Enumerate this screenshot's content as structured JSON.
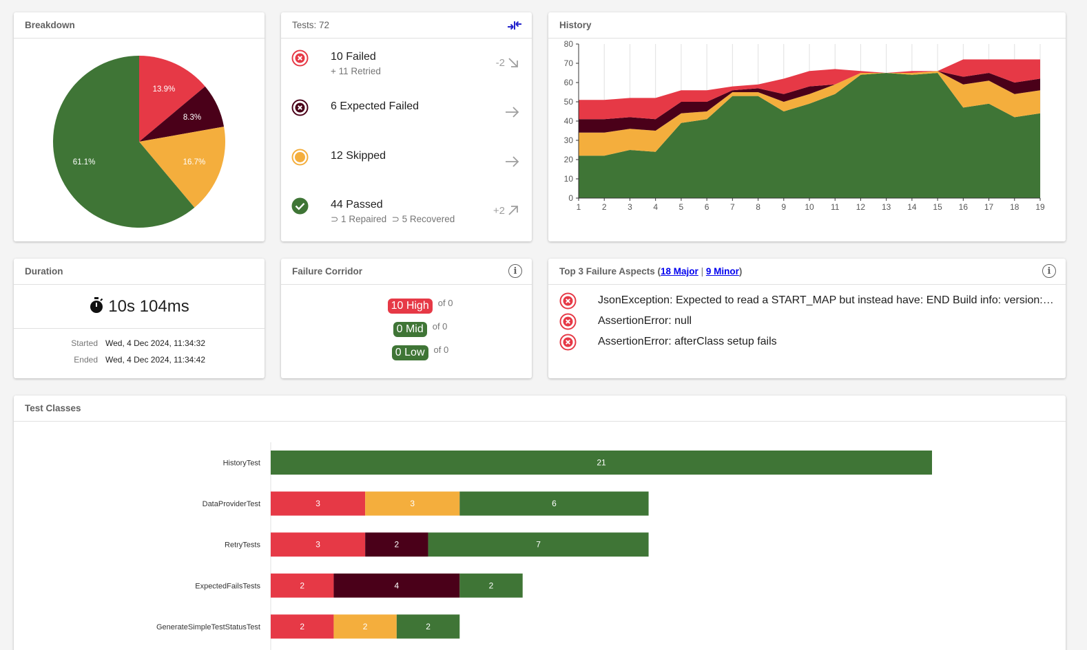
{
  "colors": {
    "failed": "#e63946",
    "expected_failed": "#4a0019",
    "skipped": "#f4ae3d",
    "passed": "#3f7536",
    "link": "#0000ee",
    "compare_icon": "#2222cc"
  },
  "breakdown": {
    "title": "Breakdown",
    "chart_data": {
      "type": "pie",
      "slices": [
        {
          "label": "Failed",
          "value": 13.9,
          "display": "13.9%",
          "color": "#e63946"
        },
        {
          "label": "Expected Failed",
          "value": 8.3,
          "display": "8.3%",
          "color": "#4a0019"
        },
        {
          "label": "Skipped",
          "value": 16.7,
          "display": "16.7%",
          "color": "#f4ae3d"
        },
        {
          "label": "Passed",
          "value": 61.1,
          "display": "61.1%",
          "color": "#3f7536"
        }
      ]
    }
  },
  "tests": {
    "title": "Tests: 72",
    "compare_icon": "compare-arrows-icon",
    "rows": [
      {
        "icon": "failed-icon",
        "main": "10 Failed",
        "sub": "+ 11 Retried",
        "delta": "-2",
        "trend_icon": "arrow-down-right-icon"
      },
      {
        "icon": "expected-failed-icon",
        "main": "6 Expected Failed",
        "sub": "",
        "delta": "",
        "trend_icon": "arrow-right-icon"
      },
      {
        "icon": "skipped-icon",
        "main": "12 Skipped",
        "sub": "",
        "delta": "",
        "trend_icon": "arrow-right-icon"
      },
      {
        "icon": "passed-icon",
        "main": "44 Passed",
        "sub": "⊃ 1 Repaired  ⊃ 5 Recovered",
        "delta": "+2",
        "trend_icon": "arrow-up-right-icon"
      }
    ]
  },
  "history": {
    "title": "History",
    "chart_data": {
      "type": "area",
      "stacked": true,
      "x": [
        1,
        2,
        3,
        4,
        5,
        6,
        7,
        8,
        9,
        10,
        11,
        12,
        13,
        14,
        15,
        16,
        17,
        18,
        19
      ],
      "ylim": [
        0,
        80
      ],
      "yticks": [
        0,
        10,
        20,
        30,
        40,
        50,
        60,
        70,
        80
      ],
      "grid": "vertical",
      "series": [
        {
          "name": "Passed",
          "color": "#3f7536",
          "values": [
            22,
            22,
            25,
            24,
            39,
            41,
            53,
            53,
            45,
            49,
            54,
            64,
            65,
            64,
            65,
            47,
            49,
            42,
            44
          ]
        },
        {
          "name": "Skipped",
          "color": "#f4ae3d",
          "values": [
            12,
            12,
            11,
            11,
            5,
            4,
            2,
            2,
            5,
            5,
            5,
            1,
            0,
            1,
            1,
            12,
            12,
            12,
            12
          ]
        },
        {
          "name": "Expected Failed",
          "color": "#4a0019",
          "values": [
            7,
            7,
            6,
            6,
            6,
            5,
            1,
            2,
            4,
            4,
            0,
            0,
            0,
            0,
            0,
            4,
            4,
            6,
            6
          ]
        },
        {
          "name": "Failed",
          "color": "#e63946",
          "values": [
            10,
            10,
            10,
            11,
            6,
            6,
            2,
            2,
            8,
            8,
            8,
            1,
            0,
            1,
            0,
            9,
            7,
            12,
            10
          ]
        }
      ]
    }
  },
  "duration": {
    "title": "Duration",
    "value": "10s 104ms",
    "icon": "stopwatch-icon",
    "started_label": "Started",
    "started_value": "Wed, 4 Dec 2024, 11:34:32",
    "ended_label": "Ended",
    "ended_value": "Wed, 4 Dec 2024, 11:34:42"
  },
  "failure_corridor": {
    "title": "Failure Corridor",
    "info_icon": "info-icon",
    "rows": [
      {
        "badge": "10 High",
        "of": "of 0",
        "color": "#e63946"
      },
      {
        "badge": "0 Mid",
        "of": "of 0",
        "color": "#3f7536"
      },
      {
        "badge": "0 Low",
        "of": "of 0",
        "color": "#3f7536"
      }
    ]
  },
  "failure_aspects": {
    "title_prefix": "Top 3 Failure Aspects (",
    "major_link": "18 Major",
    "separator": " | ",
    "minor_link": "9 Minor",
    "title_suffix": ")",
    "info_icon": "info-icon",
    "items": [
      "JsonException: Expected to read a START_MAP but instead have: END Build info: version: '4.26.0', revision: '69f9e5e' System info: os.name: 'Linux'",
      "AssertionError: null",
      "AssertionError: afterClass setup fails"
    ]
  },
  "test_classes": {
    "title": "Test Classes",
    "chart_data": {
      "type": "bar",
      "orientation": "horizontal",
      "stacked": true,
      "xlim": [
        0,
        21
      ],
      "categories": [
        "HistoryTest",
        "DataProviderTest",
        "RetryTests",
        "ExpectedFailsTests",
        "GenerateSimpleTestStatusTest"
      ],
      "series": [
        {
          "name": "Failed",
          "color": "#e63946",
          "values": [
            0,
            3,
            3,
            2,
            2
          ]
        },
        {
          "name": "Expected Failed",
          "color": "#4a0019",
          "values": [
            0,
            0,
            2,
            4,
            0
          ]
        },
        {
          "name": "Skipped",
          "color": "#f4ae3d",
          "values": [
            0,
            3,
            0,
            0,
            2
          ]
        },
        {
          "name": "Passed",
          "color": "#3f7536",
          "values": [
            21,
            6,
            7,
            2,
            2
          ]
        }
      ]
    }
  }
}
